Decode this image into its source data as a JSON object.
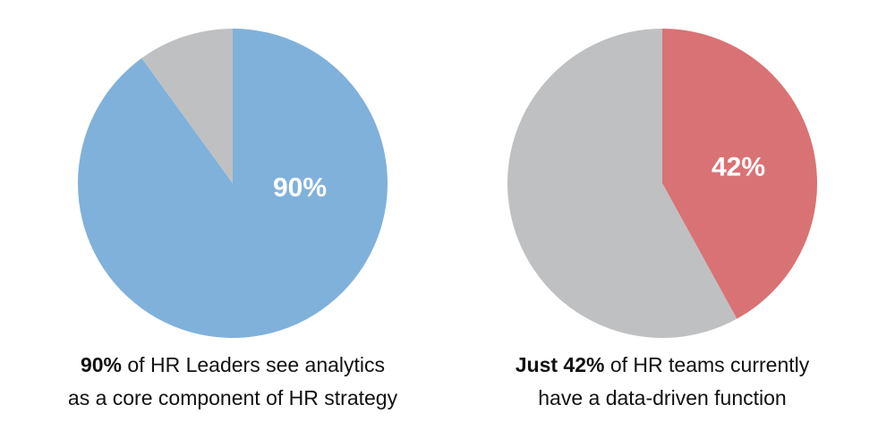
{
  "chart_data": [
    {
      "type": "pie",
      "slices": [
        {
          "label": "90%",
          "value": 90,
          "color": "#80b1da"
        },
        {
          "label": "",
          "value": 10,
          "color": "#bfc0c2"
        }
      ],
      "percent_label": "90%",
      "caption": {
        "bold": "90%",
        "line1_rest": " of HR Leaders see analytics",
        "line2": "as a core component of HR strategy"
      }
    },
    {
      "type": "pie",
      "slices": [
        {
          "label": "42%",
          "value": 42,
          "color": "#d97274"
        },
        {
          "label": "",
          "value": 58,
          "color": "#bfc0c2"
        }
      ],
      "percent_label": "42%",
      "caption": {
        "bold": "Just 42%",
        "line1_rest": " of HR teams currently",
        "line2": "have a data-driven function"
      }
    }
  ]
}
